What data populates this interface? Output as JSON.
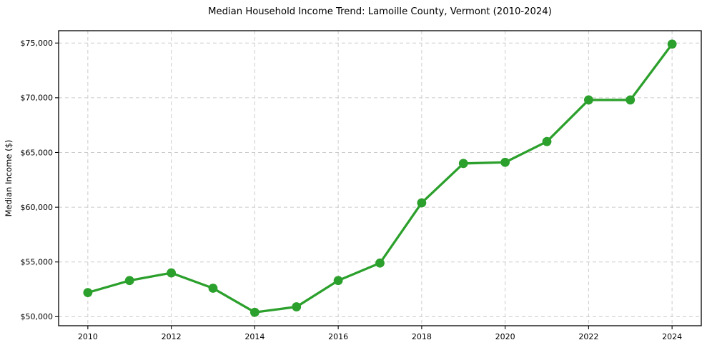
{
  "chart_data": {
    "type": "line",
    "title": "Median Household Income Trend: Lamoille County, Vermont (2010-2024)",
    "xlabel": "",
    "ylabel": "Median Income ($)",
    "x": [
      2010,
      2011,
      2012,
      2013,
      2014,
      2015,
      2016,
      2017,
      2018,
      2019,
      2020,
      2021,
      2022,
      2023,
      2024
    ],
    "series": [
      {
        "name": "Median Household Income",
        "values": [
          52200,
          53300,
          54000,
          52600,
          50400,
          50900,
          53300,
          54900,
          60400,
          64000,
          64100,
          66000,
          69800,
          69800,
          74900
        ]
      }
    ],
    "xticks": [
      2010,
      2012,
      2014,
      2016,
      2018,
      2020,
      2022,
      2024
    ],
    "xtick_labels": [
      "2010",
      "2012",
      "2014",
      "2016",
      "2018",
      "2020",
      "2022",
      "2024"
    ],
    "yticks": [
      50000,
      55000,
      60000,
      65000,
      70000,
      75000
    ],
    "ytick_labels": [
      "$50,000",
      "$55,000",
      "$60,000",
      "$65,000",
      "$70,000",
      "$75,000"
    ],
    "xlim": [
      2009.3,
      2024.7
    ],
    "ylim": [
      49175,
      76125
    ],
    "grid": true,
    "grid_style": "dashed",
    "legend_position": "none",
    "colors": {
      "line": "#2ca02c",
      "marker": "#2ca02c",
      "grid": "#cccccc",
      "spine": "#000000",
      "text": "#000000",
      "background": "#ffffff"
    }
  }
}
